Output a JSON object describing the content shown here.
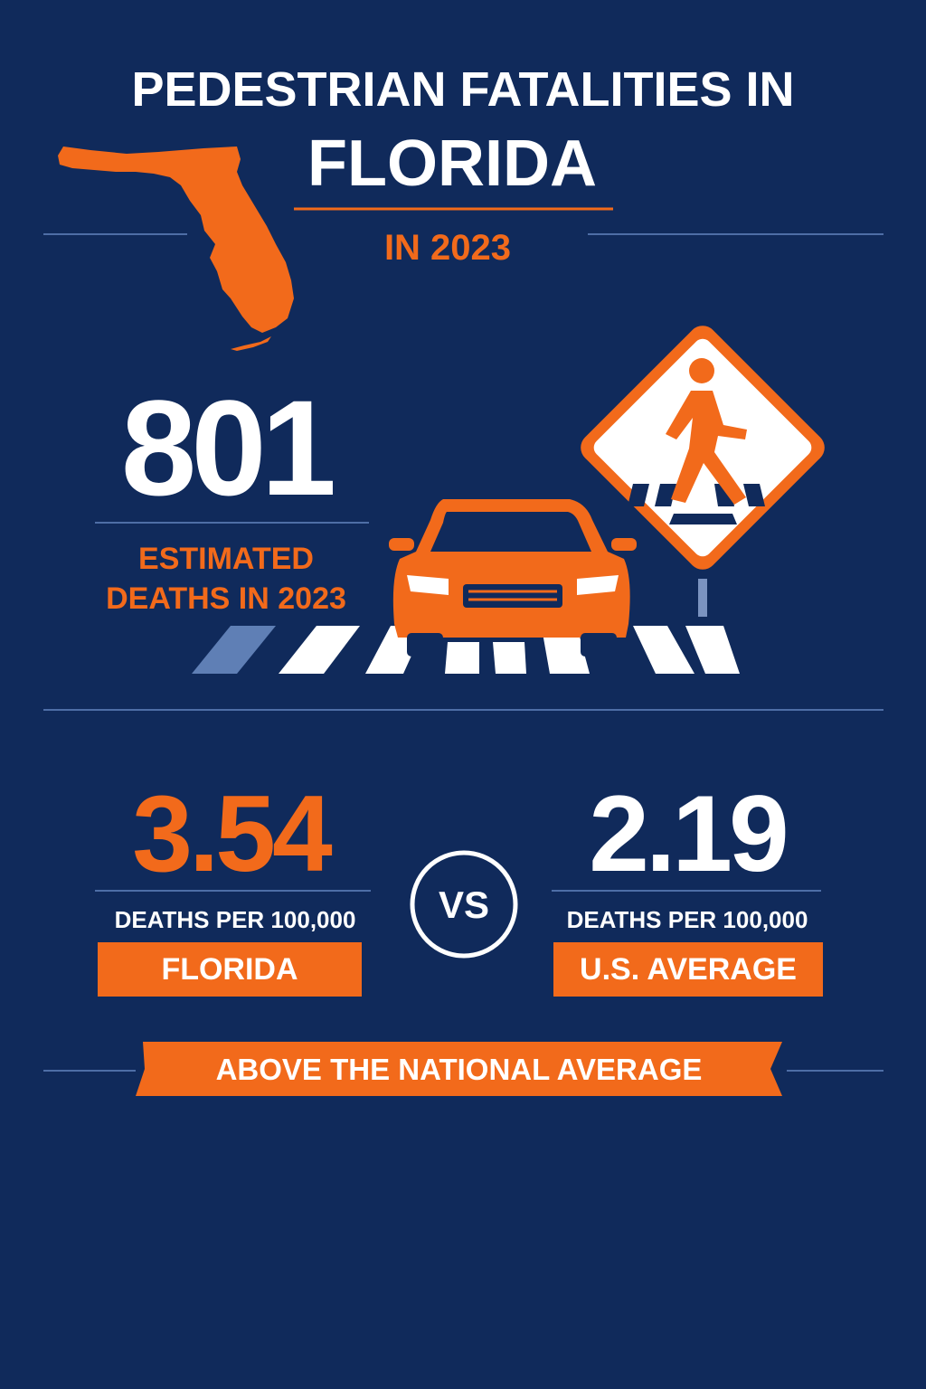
{
  "header": {
    "title_line1": "PEDESTRIAN FATALITIES IN",
    "title_line2": "FLORIDA",
    "subtitle": "IN 2023"
  },
  "headline": {
    "value": 801,
    "label": "ESTIMATED DEATHS IN 2023"
  },
  "comparison": {
    "left": {
      "value": 3.54,
      "unit": "DEATHS PER 100,000",
      "label": "FLORIDA"
    },
    "separator": "VS",
    "right": {
      "value": 2.19,
      "unit": "DEATHS PER 100,000",
      "label": "U.S. AVERAGE"
    }
  },
  "banner": "ABOVE THE NATIONAL AVERAGE"
}
